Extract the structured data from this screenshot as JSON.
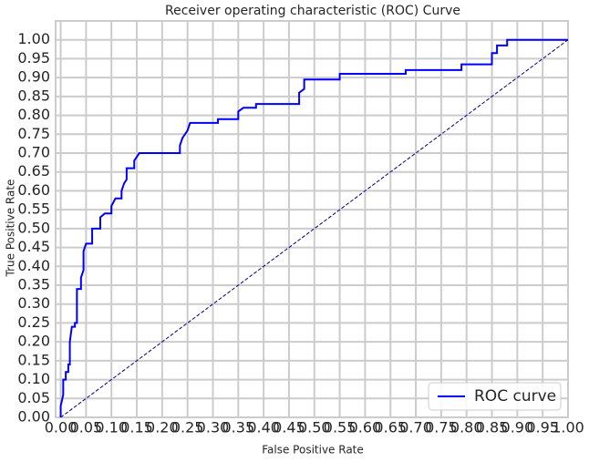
{
  "chart_data": {
    "type": "line",
    "title": "Receiver operating characteristic (ROC) Curve",
    "x_label": "False Positive Rate",
    "y_label": "True Positive Rate",
    "xlim": [
      -0.01,
      1.0
    ],
    "ylim": [
      0,
      1.05
    ],
    "xticks": [
      {
        "value": 0,
        "label": "0.00"
      },
      0.05,
      {
        "value": 0.1,
        "label": "0.10"
      },
      0.15,
      {
        "value": 0.2,
        "label": "0.20"
      },
      0.25,
      {
        "value": 0.3,
        "label": "0.30"
      },
      0.35,
      {
        "value": 0.4,
        "label": "0.40"
      },
      0.45,
      {
        "value": 0.5,
        "label": "0.50"
      },
      0.55,
      {
        "value": 0.6,
        "label": "0.60"
      },
      0.65,
      {
        "value": 0.7,
        "label": "0.70"
      },
      0.75,
      {
        "value": 0.8,
        "label": "0.80"
      },
      0.85,
      {
        "value": 0.9,
        "label": "0.90"
      },
      0.95,
      {
        "value": 1,
        "label": "1.00"
      }
    ],
    "yticks": [
      {
        "value": 0,
        "label": "0.00"
      },
      0.05,
      {
        "value": 0.1,
        "label": "0.10"
      },
      0.15,
      {
        "value": 0.2,
        "label": "0.20"
      },
      0.25,
      {
        "value": 0.3,
        "label": "0.30"
      },
      0.35,
      {
        "value": 0.4,
        "label": "0.40"
      },
      0.45,
      {
        "value": 0.5,
        "label": "0.50"
      },
      0.55,
      {
        "value": 0.6,
        "label": "0.60"
      },
      0.65,
      {
        "value": 0.7,
        "label": "0.70"
      },
      0.75,
      {
        "value": 0.8,
        "label": "0.80"
      },
      0.85,
      {
        "value": 0.9,
        "label": "0.90"
      },
      0.95,
      {
        "value": 1,
        "label": "1.00"
      }
    ],
    "grid": true,
    "legend_position": "lower-right",
    "series": [
      {
        "name": "ROC curve",
        "color": "#0000ff",
        "x": [
          0,
          0,
          0.005,
          0.005,
          0.01,
          0.01,
          0.015,
          0.015,
          0.018,
          0.018,
          0.02,
          0.022,
          0.028,
          0.028,
          0.032,
          0.032,
          0.04,
          0.04,
          0.045,
          0.045,
          0.05,
          0.062,
          0.062,
          0.078,
          0.078,
          0.087,
          0.1,
          0.1,
          0.108,
          0.12,
          0.12,
          0.125,
          0.13,
          0.13,
          0.145,
          0.145,
          0.155,
          0.235,
          0.235,
          0.24,
          0.25,
          0.255,
          0.31,
          0.31,
          0.35,
          0.35,
          0.36,
          0.385,
          0.385,
          0.47,
          0.47,
          0.48,
          0.48,
          0.55,
          0.55,
          0.68,
          0.68,
          0.79,
          0.79,
          0.85,
          0.85,
          0.86,
          0.86,
          0.88,
          0.88,
          1
        ],
        "values": [
          0,
          0.03,
          0.06,
          0.1,
          0.1,
          0.12,
          0.12,
          0.14,
          0.14,
          0.2,
          0.22,
          0.24,
          0.24,
          0.25,
          0.25,
          0.34,
          0.34,
          0.37,
          0.39,
          0.44,
          0.46,
          0.46,
          0.5,
          0.5,
          0.53,
          0.54,
          0.54,
          0.56,
          0.58,
          0.58,
          0.6,
          0.62,
          0.63,
          0.66,
          0.66,
          0.68,
          0.7,
          0.7,
          0.72,
          0.74,
          0.76,
          0.78,
          0.78,
          0.79,
          0.79,
          0.81,
          0.82,
          0.82,
          0.83,
          0.83,
          0.86,
          0.87,
          0.895,
          0.895,
          0.91,
          0.91,
          0.92,
          0.92,
          0.935,
          0.935,
          0.965,
          0.965,
          0.985,
          0.985,
          1,
          1
        ]
      }
    ],
    "reference_line": {
      "color": "#000080",
      "x": [
        0,
        1
      ],
      "y": [
        0,
        1
      ]
    }
  }
}
